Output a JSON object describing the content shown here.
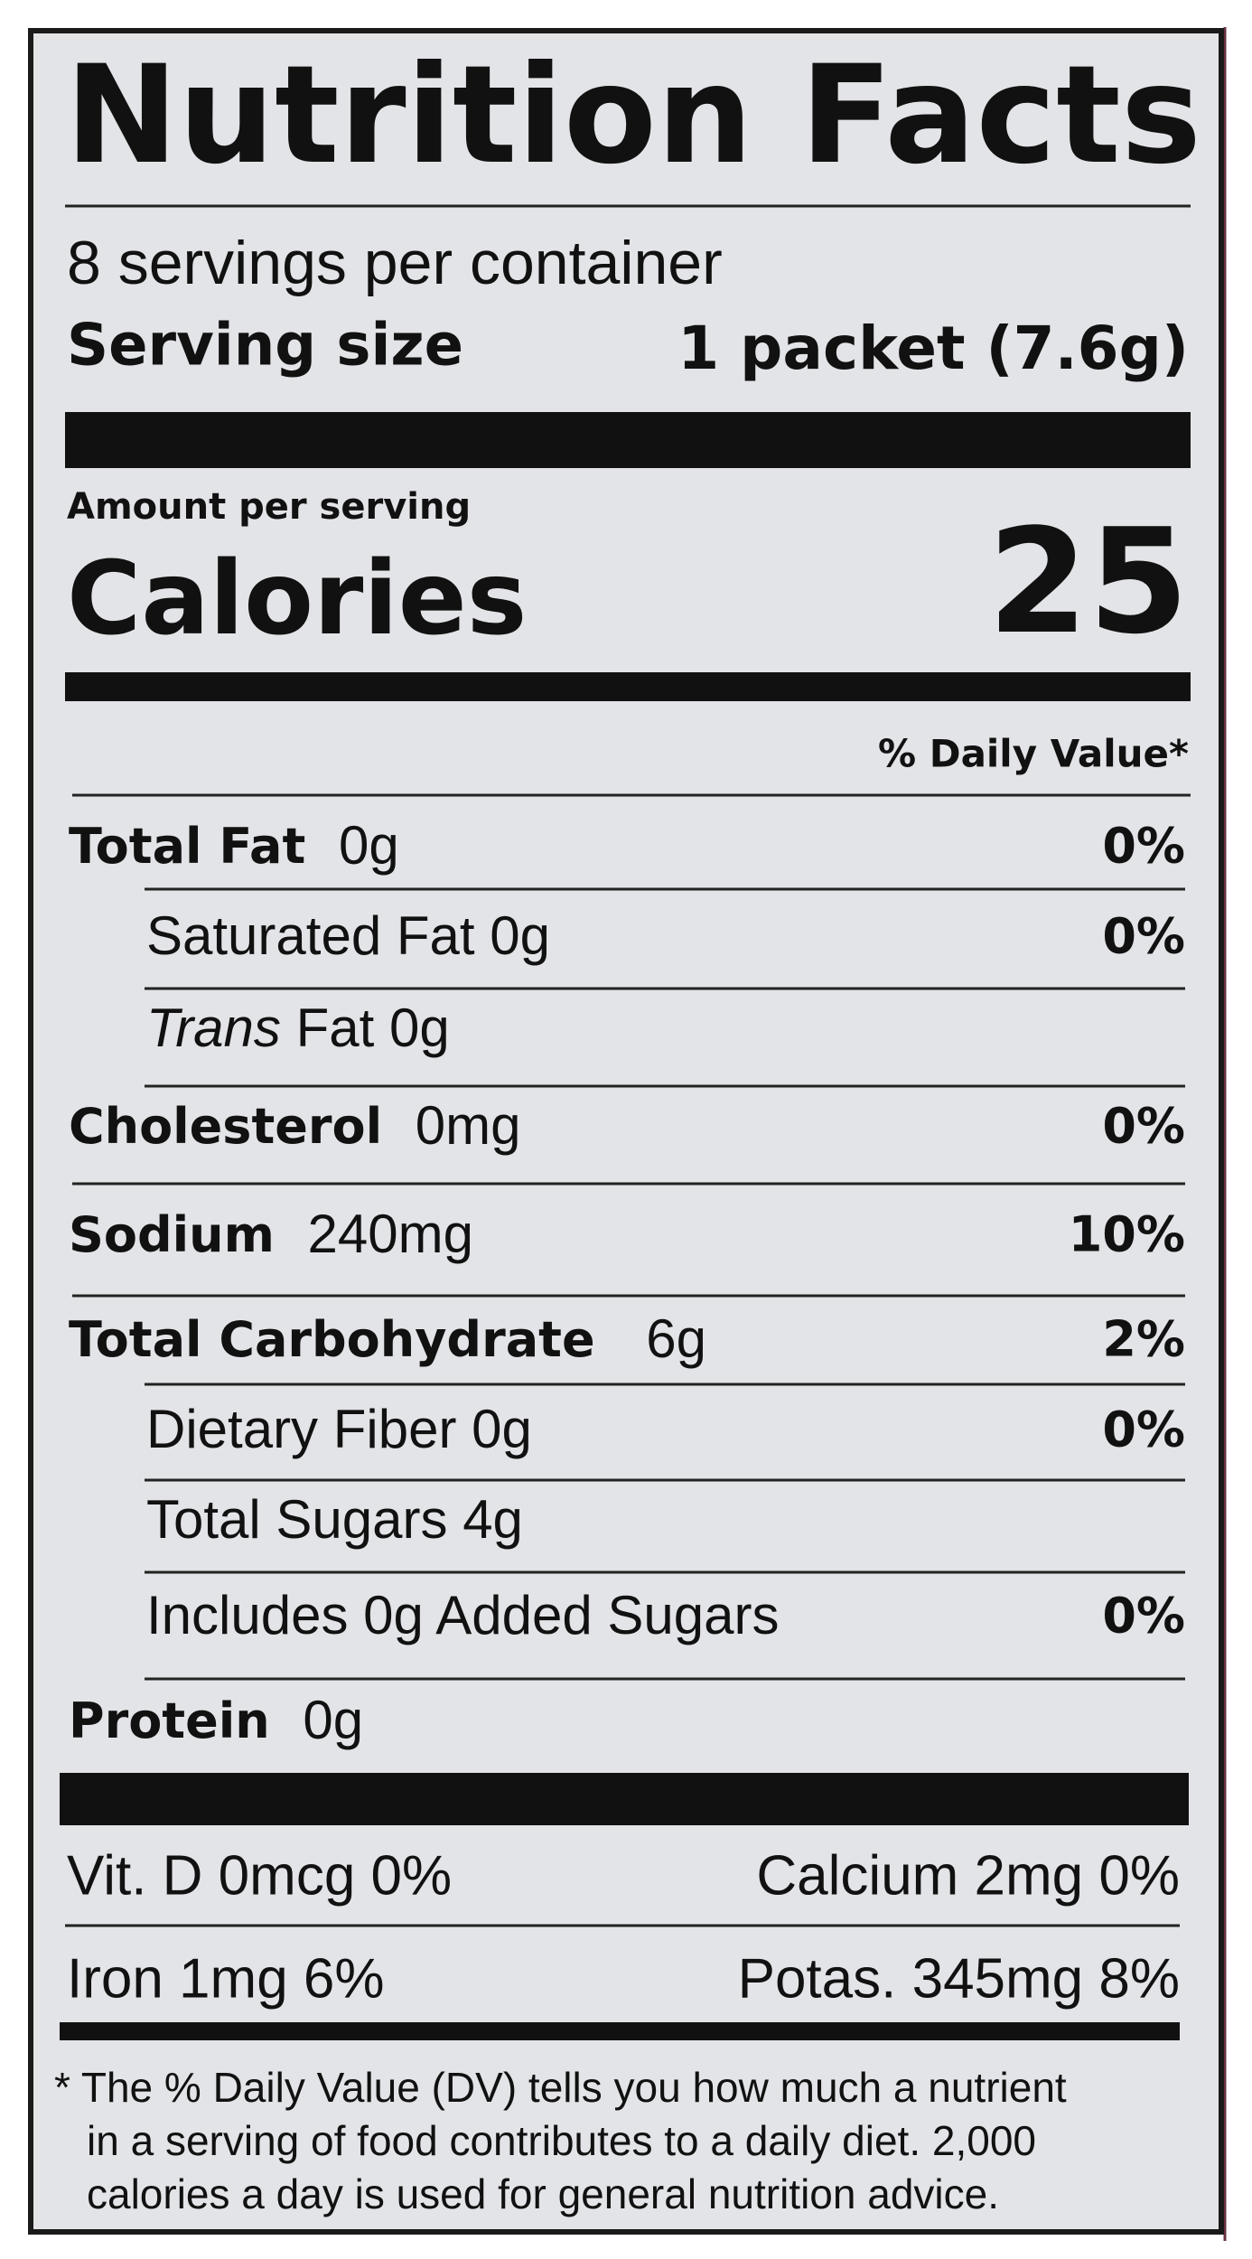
{
  "title": "Nutrition Facts",
  "servings": "8 servings per container",
  "serving_size": {
    "label": "Serving size",
    "value": "1 packet (7.6g)"
  },
  "amount_per_serving": "Amount per serving",
  "calories": {
    "label": "Calories",
    "value": "25"
  },
  "daily_value_header": "% Daily Value*",
  "nutrients": [
    {
      "name": "Total Fat",
      "amount": "0g",
      "dv": "0%"
    },
    {
      "name": "Saturated Fat",
      "amount": "0g",
      "dv": "0%",
      "sub": true
    },
    {
      "prefix": "Trans",
      "name": "Fat",
      "amount": "0g",
      "sub": true
    },
    {
      "name": "Cholesterol",
      "amount": "0mg",
      "dv": "0%"
    },
    {
      "name": "Sodium",
      "amount": "240mg",
      "dv": "10%"
    },
    {
      "name": "Total Carbohydrate",
      "amount": "6g",
      "dv": "2%"
    },
    {
      "name": "Dietary Fiber",
      "amount": "0g",
      "dv": "0%",
      "sub": true
    },
    {
      "name": "Total Sugars",
      "amount": "4g",
      "sub": true
    },
    {
      "name": "Includes 0g Added Sugars",
      "dv": "0%",
      "sub": true
    },
    {
      "name": "Protein",
      "amount": "0g"
    }
  ],
  "vitamins": [
    [
      "Vit. D 0mcg 0%",
      "Calcium 2mg 0%"
    ],
    [
      "Iron 1mg 6%",
      "Potas. 345mg 8%"
    ]
  ],
  "footnote": [
    "* The % Daily Value (DV) tells you how much a nutrient",
    "in a serving of food contributes to a daily diet. 2,000",
    "calories a day is used for general nutrition advice."
  ]
}
